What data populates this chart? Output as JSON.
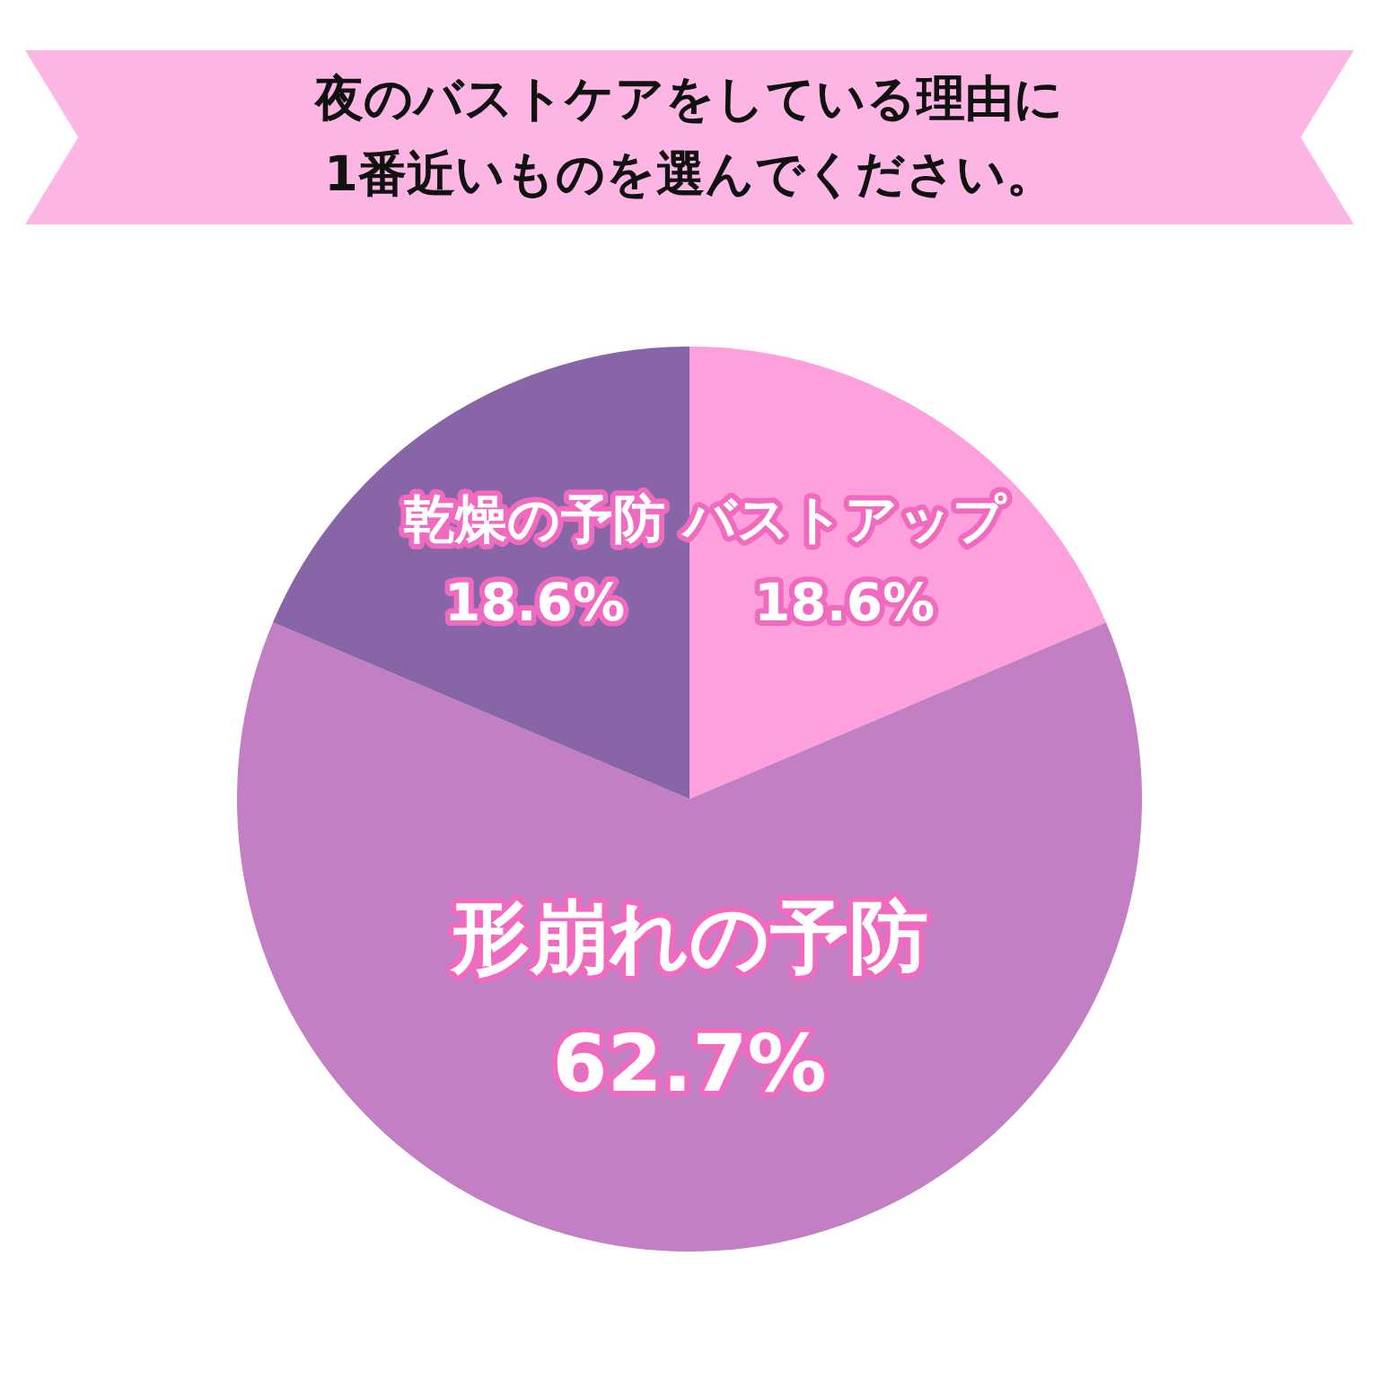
{
  "chart_data": {
    "type": "pie",
    "title": "夜のバストケアをしている理由に\n1番近いものを選んでください。",
    "categories": [
      "バストアップ",
      "形崩れの予防",
      "乾燥の予防"
    ],
    "values": [
      18.6,
      62.7,
      18.6
    ],
    "colors": [
      "#fda0dc",
      "#c27fc4",
      "#8765a7"
    ],
    "value_labels": [
      "18.6%",
      "62.7%",
      "18.6%"
    ],
    "legend": false
  }
}
